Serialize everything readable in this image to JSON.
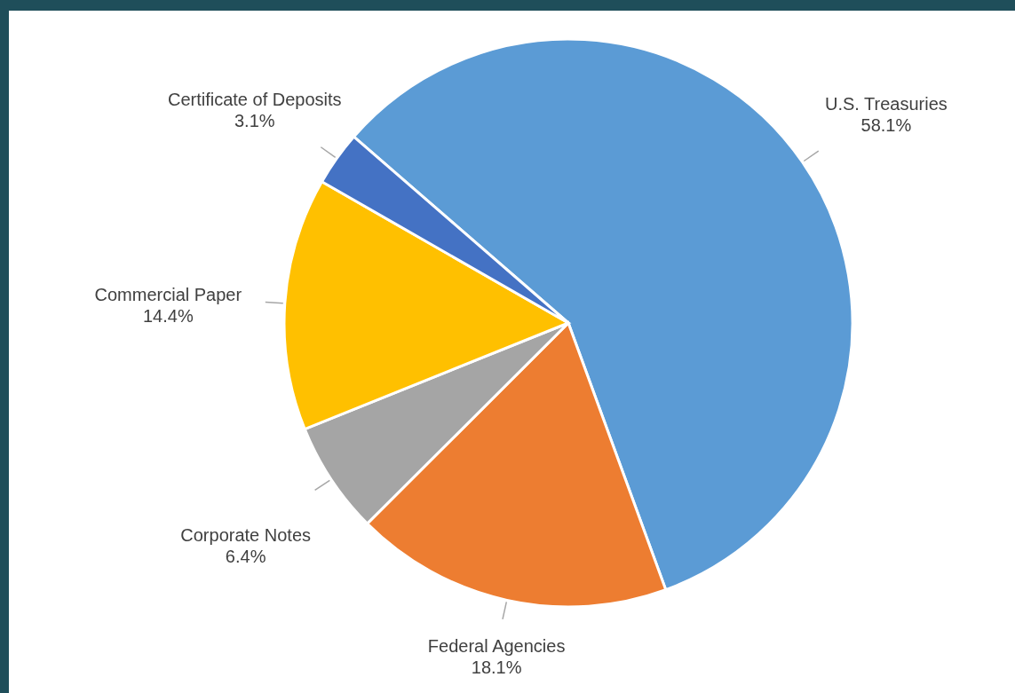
{
  "chart_data": {
    "type": "pie",
    "categories": [
      "U.S. Treasuries",
      "Federal Agencies",
      "Corporate Notes",
      "Commercial Paper",
      "Certificate of Deposits"
    ],
    "values": [
      58.1,
      18.1,
      6.4,
      14.4,
      3.1
    ],
    "value_labels": [
      "58.1%",
      "18.1%",
      "6.4%",
      "14.4%",
      "3.1%"
    ],
    "colors": [
      "#5b9bd5",
      "#ed7d31",
      "#a5a5a5",
      "#ffc000",
      "#4472c4"
    ]
  }
}
